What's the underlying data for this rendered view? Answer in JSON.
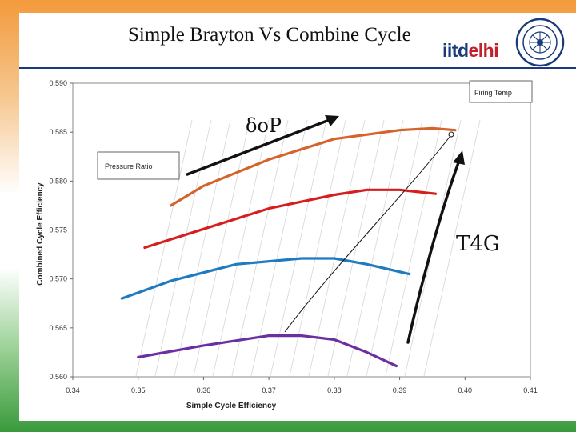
{
  "slide": {
    "title": "Simple Brayton Vs Combine Cycle",
    "logo": {
      "part1": "iitd",
      "part2": "elhi"
    },
    "annotations": {
      "top": "δoP",
      "right": "T4G"
    }
  },
  "chart_data": {
    "type": "line",
    "title": "",
    "xlabel": "Simple Cycle Efficiency",
    "ylabel": "Combined Cycle Efficiency",
    "xlim": [
      0.34,
      0.41
    ],
    "ylim": [
      0.56,
      0.59
    ],
    "xticks": [
      "0.34",
      "0.35",
      "0.36",
      "0.37",
      "0.38",
      "0.39",
      "0.40",
      "0.41"
    ],
    "yticks": [
      "0.560",
      "0.565",
      "0.570",
      "0.575",
      "0.580",
      "0.585",
      "0.590"
    ],
    "legend_boxes": [
      "Firing Temp",
      "Pressure Ratio"
    ],
    "grid": false,
    "series": [
      {
        "color": "#d4632c",
        "x": [
          0.355,
          0.36,
          0.37,
          0.38,
          0.39,
          0.395,
          0.3985
        ],
        "y": [
          0.5775,
          0.5795,
          0.5822,
          0.5843,
          0.5852,
          0.5854,
          0.5852
        ]
      },
      {
        "color": "#d61e1e",
        "x": [
          0.351,
          0.36,
          0.37,
          0.38,
          0.385,
          0.39,
          0.3955
        ],
        "y": [
          0.5732,
          0.5751,
          0.5772,
          0.5786,
          0.5791,
          0.5791,
          0.5787
        ]
      },
      {
        "color": "#1f7bc0",
        "x": [
          0.3475,
          0.355,
          0.365,
          0.375,
          0.38,
          0.385,
          0.3915
        ],
        "y": [
          0.568,
          0.5698,
          0.5715,
          0.5721,
          0.5721,
          0.5715,
          0.5705
        ]
      },
      {
        "color": "#6b2fa0",
        "x": [
          0.35,
          0.36,
          0.37,
          0.375,
          0.38,
          0.385,
          0.3895
        ],
        "y": [
          0.562,
          0.5632,
          0.5642,
          0.5642,
          0.5638,
          0.5625,
          0.5611
        ]
      }
    ]
  }
}
